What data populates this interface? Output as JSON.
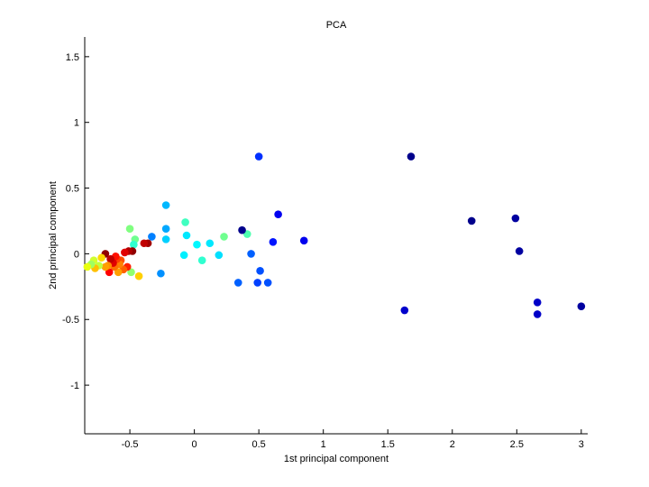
{
  "chart_data": {
    "type": "scatter",
    "title": "PCA",
    "xlabel": "1st principal component",
    "ylabel": "2nd principal component",
    "xlim": [
      -0.85,
      3.05
    ],
    "ylim": [
      -1.37,
      1.65
    ],
    "xticks": [
      -0.5,
      0,
      0.5,
      1,
      1.5,
      2,
      2.5,
      3
    ],
    "xtick_labels": [
      "-0.5",
      "0",
      "0.5",
      "1",
      "1.5",
      "2",
      "2.5",
      "3"
    ],
    "yticks": [
      -1,
      -0.5,
      0,
      0.5,
      1,
      1.5
    ],
    "ytick_labels": [
      "-1",
      "-0.5",
      "0",
      "0.5",
      "1",
      "1.5"
    ],
    "grid": false,
    "legend": "none",
    "colormap": "jet",
    "points": [
      {
        "x": 3.0,
        "y": -0.4,
        "color": "#0000a0"
      },
      {
        "x": 2.66,
        "y": -0.46,
        "color": "#0000c8"
      },
      {
        "x": 2.66,
        "y": -0.37,
        "color": "#0000c8"
      },
      {
        "x": 2.52,
        "y": 0.02,
        "color": "#0000a0"
      },
      {
        "x": 2.49,
        "y": 0.27,
        "color": "#0000a0"
      },
      {
        "x": 2.15,
        "y": 0.25,
        "color": "#00008c"
      },
      {
        "x": 1.68,
        "y": 0.74,
        "color": "#00008c"
      },
      {
        "x": 1.63,
        "y": -0.43,
        "color": "#0000cc"
      },
      {
        "x": 0.85,
        "y": 0.1,
        "color": "#0000ee"
      },
      {
        "x": 0.65,
        "y": 0.3,
        "color": "#0000f0"
      },
      {
        "x": 0.61,
        "y": 0.09,
        "color": "#0014ff"
      },
      {
        "x": 0.57,
        "y": -0.22,
        "color": "#0050ff"
      },
      {
        "x": 0.5,
        "y": 0.74,
        "color": "#0030ff"
      },
      {
        "x": 0.51,
        "y": -0.13,
        "color": "#0050ff"
      },
      {
        "x": 0.49,
        "y": -0.22,
        "color": "#0040ff"
      },
      {
        "x": 0.44,
        "y": 0.0,
        "color": "#0060ff"
      },
      {
        "x": 0.41,
        "y": 0.15,
        "color": "#50ffb0"
      },
      {
        "x": 0.37,
        "y": 0.18,
        "color": "#00008c"
      },
      {
        "x": 0.34,
        "y": -0.22,
        "color": "#0060ff"
      },
      {
        "x": 0.23,
        "y": 0.13,
        "color": "#70ff90"
      },
      {
        "x": 0.19,
        "y": -0.01,
        "color": "#00e0ff"
      },
      {
        "x": 0.12,
        "y": 0.08,
        "color": "#00e8ff"
      },
      {
        "x": 0.06,
        "y": -0.05,
        "color": "#30ffd0"
      },
      {
        "x": 0.02,
        "y": 0.07,
        "color": "#00f8ff"
      },
      {
        "x": -0.06,
        "y": 0.14,
        "color": "#00e8ff"
      },
      {
        "x": -0.07,
        "y": 0.24,
        "color": "#40ffc0"
      },
      {
        "x": -0.08,
        "y": -0.01,
        "color": "#00f0ff"
      },
      {
        "x": -0.22,
        "y": 0.37,
        "color": "#00b8ff"
      },
      {
        "x": -0.22,
        "y": 0.19,
        "color": "#00a8ff"
      },
      {
        "x": -0.22,
        "y": 0.11,
        "color": "#00d0ff"
      },
      {
        "x": -0.26,
        "y": -0.15,
        "color": "#0090ff"
      },
      {
        "x": -0.33,
        "y": 0.13,
        "color": "#0080ff"
      },
      {
        "x": -0.36,
        "y": 0.08,
        "color": "#a00000"
      },
      {
        "x": -0.39,
        "y": 0.08,
        "color": "#c00000"
      },
      {
        "x": -0.43,
        "y": -0.17,
        "color": "#ffd000"
      },
      {
        "x": -0.46,
        "y": 0.11,
        "color": "#70ff90"
      },
      {
        "x": -0.47,
        "y": 0.07,
        "color": "#30ffd0"
      },
      {
        "x": -0.48,
        "y": 0.02,
        "color": "#900000"
      },
      {
        "x": -0.49,
        "y": -0.14,
        "color": "#90ff70"
      },
      {
        "x": -0.5,
        "y": 0.19,
        "color": "#80ff80"
      },
      {
        "x": -0.51,
        "y": 0.02,
        "color": "#b00000"
      },
      {
        "x": -0.52,
        "y": -0.1,
        "color": "#ff2000"
      },
      {
        "x": -0.54,
        "y": 0.01,
        "color": "#e00000"
      },
      {
        "x": -0.55,
        "y": -0.12,
        "color": "#ff6000"
      },
      {
        "x": -0.57,
        "y": -0.05,
        "color": "#ff5000"
      },
      {
        "x": -0.58,
        "y": -0.08,
        "color": "#ff8000"
      },
      {
        "x": -0.59,
        "y": -0.14,
        "color": "#ffa000"
      },
      {
        "x": -0.6,
        "y": -0.04,
        "color": "#ff4000"
      },
      {
        "x": -0.61,
        "y": -0.02,
        "color": "#ff1000"
      },
      {
        "x": -0.62,
        "y": -0.1,
        "color": "#ff7000"
      },
      {
        "x": -0.63,
        "y": -0.07,
        "color": "#e00000"
      },
      {
        "x": -0.65,
        "y": -0.04,
        "color": "#c00000"
      },
      {
        "x": -0.66,
        "y": -0.14,
        "color": "#ff0000"
      },
      {
        "x": -0.67,
        "y": -0.09,
        "color": "#ff9000"
      },
      {
        "x": -0.69,
        "y": -0.1,
        "color": "#ffa000"
      },
      {
        "x": -0.69,
        "y": 0.0,
        "color": "#900000"
      },
      {
        "x": -0.72,
        "y": -0.03,
        "color": "#ffd800"
      },
      {
        "x": -0.74,
        "y": -0.09,
        "color": "#c0ff40"
      },
      {
        "x": -0.77,
        "y": -0.11,
        "color": "#ffc000"
      },
      {
        "x": -0.78,
        "y": -0.05,
        "color": "#d0ff30"
      },
      {
        "x": -0.8,
        "y": -0.08,
        "color": "#a0ff60"
      },
      {
        "x": -0.83,
        "y": -0.1,
        "color": "#e8ff10"
      }
    ]
  }
}
